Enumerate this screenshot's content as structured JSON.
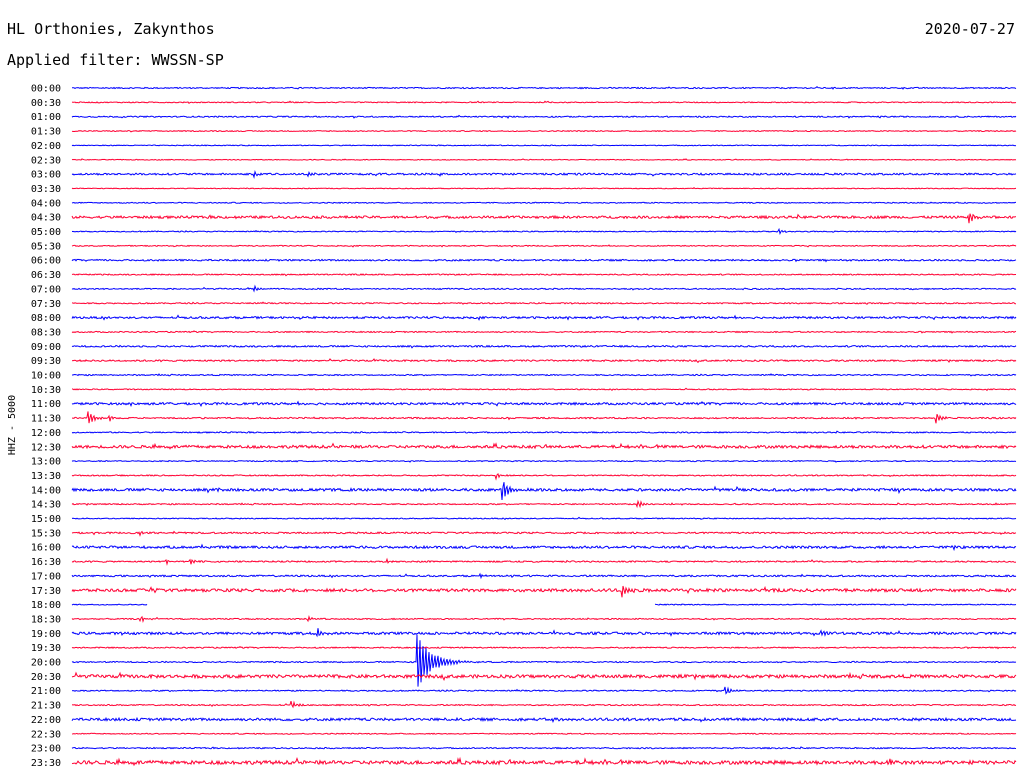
{
  "header": {
    "station": "HL Orthonies, Zakynthos",
    "date": "2020-07-27",
    "filter": "Applied filter: WWSSN-SP"
  },
  "chart_data": {
    "type": "line",
    "title": "HL Orthonies, Zakynthos",
    "ylabel": "HHZ - 5000",
    "trace_colors": [
      "#0000ff",
      "#ff0033"
    ],
    "rows": [
      "00:00",
      "00:30",
      "01:00",
      "01:30",
      "02:00",
      "02:30",
      "03:00",
      "03:30",
      "04:00",
      "04:30",
      "05:00",
      "05:30",
      "06:00",
      "06:30",
      "07:00",
      "07:30",
      "08:00",
      "08:30",
      "09:00",
      "09:30",
      "10:00",
      "10:30",
      "11:00",
      "11:30",
      "12:00",
      "12:30",
      "13:00",
      "13:30",
      "14:00",
      "14:30",
      "15:00",
      "15:30",
      "16:00",
      "16:30",
      "17:00",
      "17:30",
      "18:00",
      "18:30",
      "19:00",
      "19:30",
      "20:00",
      "20:30",
      "21:00",
      "21:30",
      "22:00",
      "22:30",
      "23:00",
      "23:30"
    ],
    "x_unit": "minutes within row",
    "xlim": [
      0,
      30
    ],
    "noise_level": [
      0.6,
      0.5,
      0.6,
      0.5,
      0.4,
      0.4,
      0.9,
      0.4,
      0.5,
      1.2,
      0.5,
      0.5,
      0.8,
      0.6,
      0.6,
      0.6,
      1.0,
      0.6,
      0.8,
      0.8,
      0.6,
      0.5,
      1.1,
      0.7,
      0.6,
      1.4,
      0.5,
      0.6,
      1.3,
      0.6,
      0.5,
      0.8,
      1.2,
      0.7,
      0.8,
      1.5,
      0.5,
      0.6,
      1.2,
      0.6,
      0.6,
      1.6,
      0.6,
      0.6,
      1.3,
      0.5,
      0.6,
      1.8
    ],
    "events": [
      {
        "row": "03:00",
        "minute": 5.8,
        "amplitude": 2.5
      },
      {
        "row": "03:00",
        "minute": 7.5,
        "amplitude": 2.5
      },
      {
        "row": "04:30",
        "minute": 28.5,
        "amplitude": 6
      },
      {
        "row": "05:00",
        "minute": 22.5,
        "amplitude": 2.5
      },
      {
        "row": "07:00",
        "minute": 5.8,
        "amplitude": 3
      },
      {
        "row": "11:30",
        "minute": 0.5,
        "amplitude": 8
      },
      {
        "row": "11:30",
        "minute": 1.2,
        "amplitude": 3
      },
      {
        "row": "11:30",
        "minute": 27.5,
        "amplitude": 5
      },
      {
        "row": "13:30",
        "minute": 13.5,
        "amplitude": 3
      },
      {
        "row": "14:00",
        "minute": 13.7,
        "amplitude": 10
      },
      {
        "row": "14:00",
        "minute": 4.6,
        "amplitude": 2
      },
      {
        "row": "14:30",
        "minute": 18.0,
        "amplitude": 4
      },
      {
        "row": "15:30",
        "minute": 2.2,
        "amplitude": 2
      },
      {
        "row": "16:00",
        "minute": 28.0,
        "amplitude": 3
      },
      {
        "row": "16:30",
        "minute": 3.0,
        "amplitude": 2.5
      },
      {
        "row": "16:30",
        "minute": 3.8,
        "amplitude": 2.5
      },
      {
        "row": "16:30",
        "minute": 10.0,
        "amplitude": 2
      },
      {
        "row": "17:00",
        "minute": 13.0,
        "amplitude": 1.5
      },
      {
        "row": "17:30",
        "minute": 2.5,
        "amplitude": 3
      },
      {
        "row": "17:30",
        "minute": 17.5,
        "amplitude": 7
      },
      {
        "row": "18:30",
        "minute": 2.2,
        "amplitude": 3
      },
      {
        "row": "18:30",
        "minute": 7.5,
        "amplitude": 2.5
      },
      {
        "row": "19:00",
        "minute": 7.8,
        "amplitude": 5
      },
      {
        "row": "19:00",
        "minute": 23.8,
        "amplitude": 3
      },
      {
        "row": "20:00",
        "minute": 11.0,
        "amplitude": 28
      },
      {
        "row": "21:00",
        "minute": 20.8,
        "amplitude": 4
      },
      {
        "row": "21:30",
        "minute": 7.0,
        "amplitude": 4
      },
      {
        "row": "22:00",
        "minute": 15.3,
        "amplitude": 2.5
      },
      {
        "row": "23:30",
        "minute": 26.0,
        "amplitude": 3
      }
    ],
    "gaps": [
      {
        "row": "18:00",
        "from_minute": 2.4,
        "to_minute": 18.5
      }
    ]
  }
}
